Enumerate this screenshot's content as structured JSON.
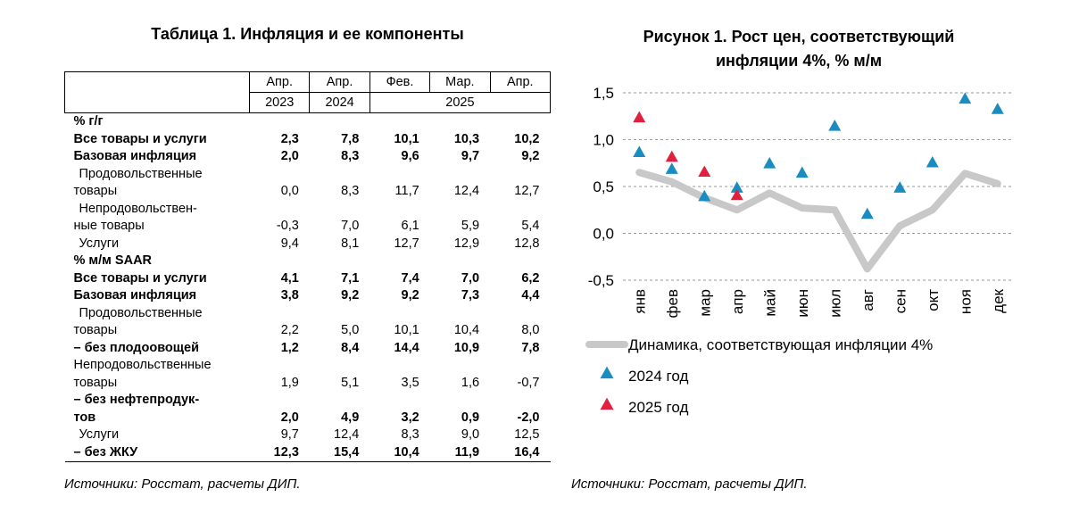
{
  "table": {
    "title": "Таблица 1. Инфляция и ее компоненты",
    "header_months": [
      "Апр.",
      "Апр.",
      "Фев.",
      "Мар.",
      "Апр."
    ],
    "header_years": [
      "2023",
      "2024",
      "2025"
    ],
    "rows": [
      {
        "label": "% г/г",
        "values": [
          "",
          "",
          "",
          "",
          ""
        ],
        "style": "sec"
      },
      {
        "label": "Все товары и услуги",
        "values": [
          "2,3",
          "7,8",
          "10,1",
          "10,3",
          "10,2"
        ],
        "style": "b"
      },
      {
        "label": "Базовая инфляция",
        "values": [
          "2,0",
          "8,3",
          "9,6",
          "9,7",
          "9,2"
        ],
        "style": "b"
      },
      {
        "label": "Продовольственные",
        "values": [
          "",
          "",
          "",
          "",
          ""
        ],
        "style": "indent"
      },
      {
        "label": "товары",
        "values": [
          "0,0",
          "8,3",
          "11,7",
          "12,4",
          "12,7"
        ],
        "style": "plain"
      },
      {
        "label": "Непродовольствен-",
        "values": [
          "",
          "",
          "",
          "",
          ""
        ],
        "style": "indent"
      },
      {
        "label": "ные товары",
        "values": [
          "-0,3",
          "7,0",
          "6,1",
          "5,9",
          "5,4"
        ],
        "style": "plain"
      },
      {
        "label": "Услуги",
        "values": [
          "9,4",
          "8,1",
          "12,7",
          "12,9",
          "12,8"
        ],
        "style": "indent"
      },
      {
        "label": "% м/м SAAR",
        "values": [
          "",
          "",
          "",
          "",
          ""
        ],
        "style": "sec"
      },
      {
        "label": "Все товары и услуги",
        "values": [
          "4,1",
          "7,1",
          "7,4",
          "7,0",
          "6,2"
        ],
        "style": "b"
      },
      {
        "label": "Базовая инфляция",
        "values": [
          "3,8",
          "9,2",
          "9,2",
          "7,3",
          "4,4"
        ],
        "style": "b"
      },
      {
        "label": "Продовольственные",
        "values": [
          "",
          "",
          "",
          "",
          ""
        ],
        "style": "indent"
      },
      {
        "label": "товары",
        "values": [
          "2,2",
          "5,0",
          "10,1",
          "10,4",
          "8,0"
        ],
        "style": "plain"
      },
      {
        "label": "– без плодоовощей",
        "values": [
          "1,2",
          "8,4",
          "14,4",
          "10,9",
          "7,8"
        ],
        "style": "b"
      },
      {
        "label": "Непродовольственные",
        "values": [
          "",
          "",
          "",
          "",
          ""
        ],
        "style": "plain"
      },
      {
        "label": "товары",
        "values": [
          "1,9",
          "5,1",
          "3,5",
          "1,6",
          "-0,7"
        ],
        "style": "plain"
      },
      {
        "label": "– без нефтепродук-",
        "values": [
          "",
          "",
          "",
          "",
          ""
        ],
        "style": "b"
      },
      {
        "label": "тов",
        "values": [
          "2,0",
          "4,9",
          "3,2",
          "0,9",
          "-2,0"
        ],
        "style": "b"
      },
      {
        "label": "Услуги",
        "values": [
          "9,7",
          "12,4",
          "8,3",
          "9,0",
          "12,5"
        ],
        "style": "indent"
      },
      {
        "label": "– без ЖКУ",
        "values": [
          "12,3",
          "15,4",
          "10,4",
          "11,9",
          "16,4"
        ],
        "style": "b"
      }
    ],
    "source": "Источники: Росстат, расчеты ДИП."
  },
  "chart_data": {
    "type": "line",
    "title": "Рисунок 1. Рост цен, соответствующий инфляции 4%, % м/м",
    "title_lines": [
      "Рисунок 1. Рост цен, соответствующий",
      "инфляции 4%, % м/м"
    ],
    "categories": [
      "янв",
      "фев",
      "мар",
      "апр",
      "май",
      "июн",
      "июл",
      "авг",
      "сен",
      "окт",
      "ноя",
      "дек"
    ],
    "ylim": [
      -0.5,
      1.5
    ],
    "yticks": [
      1.5,
      1.0,
      0.5,
      0.0,
      -0.5
    ],
    "ytick_labels": [
      "1,5",
      "1,0",
      "0,5",
      "0,0",
      "-0,5"
    ],
    "grid": "horizontal-dashed",
    "series": [
      {
        "name": "Динамика, соответствующая инфляции 4%",
        "kind": "line",
        "color": "#c8c8c8",
        "values": [
          0.65,
          0.55,
          0.38,
          0.25,
          0.43,
          0.27,
          0.25,
          -0.38,
          0.08,
          0.25,
          0.64,
          0.53
        ]
      },
      {
        "name": "2024 год",
        "kind": "marker",
        "color": "#1a8cc0",
        "values": [
          0.86,
          0.68,
          0.39,
          0.48,
          0.74,
          0.64,
          1.14,
          0.2,
          0.48,
          0.75,
          1.43,
          1.32
        ]
      },
      {
        "name": "2025 год",
        "kind": "marker",
        "color": "#e0203c",
        "values": [
          1.23,
          0.81,
          0.65,
          0.4,
          null,
          null,
          null,
          null,
          null,
          null,
          null,
          null
        ]
      }
    ],
    "legend_position": "bottom",
    "source": "Источники: Росстат, расчеты ДИП."
  }
}
